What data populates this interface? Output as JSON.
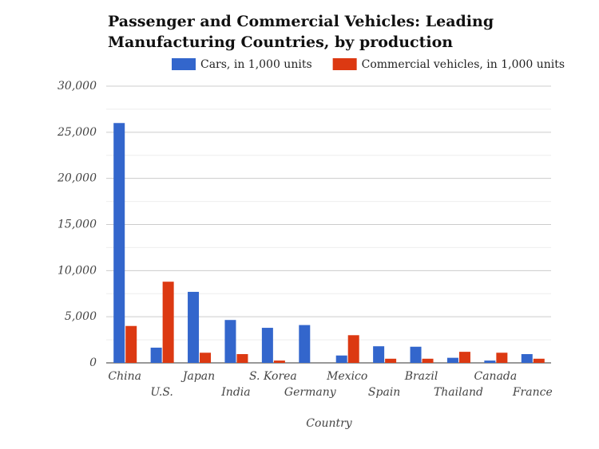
{
  "chart_data": {
    "type": "bar",
    "title": [
      "Passenger and Commercial Vehicles: Leading",
      "Manufacturing Countries, by production"
    ],
    "x_label": "Country",
    "categories": [
      "China",
      "U.S.",
      "Japan",
      "India",
      "S. Korea",
      "Germany",
      "Mexico",
      "Spain",
      "Brazil",
      "Thailand",
      "Canada",
      "France"
    ],
    "series": [
      {
        "name": "Cars, in 1,000 units",
        "color": "#3366cc",
        "values": [
          26000,
          1650,
          7700,
          4650,
          3800,
          4100,
          800,
          1800,
          1750,
          550,
          250,
          950
        ]
      },
      {
        "name": "Commercial vehicles, in 1,000 units",
        "color": "#dc3912",
        "values": [
          4000,
          8800,
          1100,
          950,
          250,
          0,
          3000,
          450,
          450,
          1200,
          1100,
          450
        ]
      }
    ],
    "ylim": [
      0,
      30000
    ],
    "yticks": [
      {
        "value": 0,
        "label": "0"
      },
      {
        "value": 5000,
        "label": "5,000"
      },
      {
        "value": 10000,
        "label": "10,000"
      },
      {
        "value": 15000,
        "label": "15,000"
      },
      {
        "value": 20000,
        "label": "20,000"
      },
      {
        "value": 25000,
        "label": "25,000"
      },
      {
        "value": 30000,
        "label": "30,000"
      }
    ],
    "yminorticks": [
      2500,
      7500,
      12500,
      17500,
      22500,
      27500
    ],
    "grid": true,
    "legend": "top"
  }
}
